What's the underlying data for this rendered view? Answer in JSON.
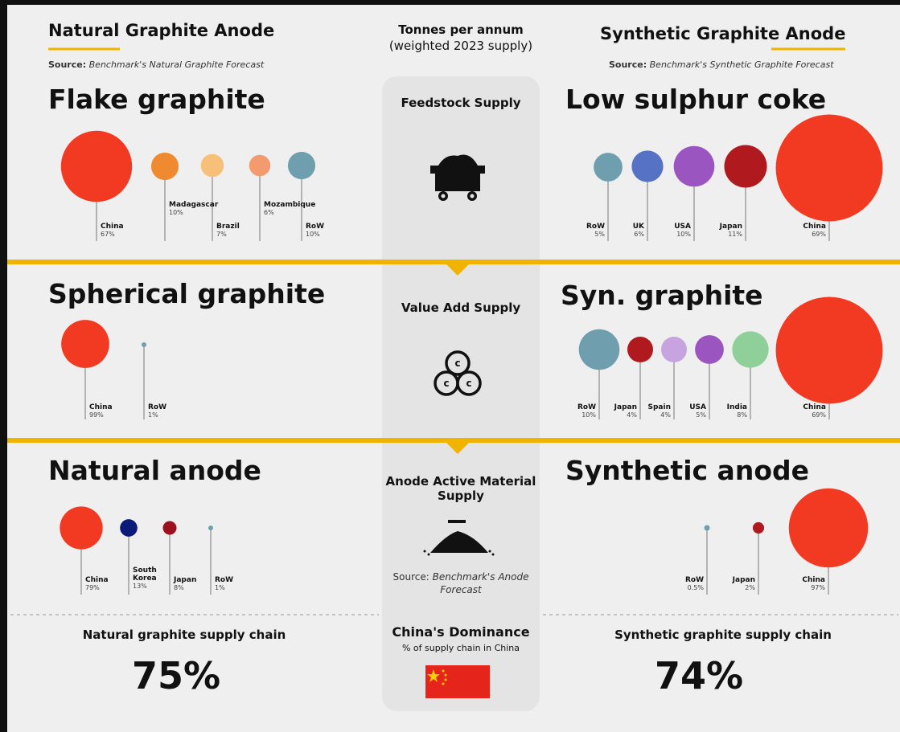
{
  "header": {
    "left": {
      "title": "Natural Graphite Anode",
      "source_label": "Source:",
      "source_text": "Benchmark's Natural Graphite Forecast"
    },
    "center": {
      "line1": "Tonnes per annum",
      "line2": "(weighted 2023 supply)"
    },
    "right": {
      "title": "Synthetic Graphite Anode",
      "source_label": "Source:",
      "source_text": "Benchmark's Synthetic Graphite Forecast"
    }
  },
  "stages": [
    {
      "label": "Feedstock Supply",
      "left": {
        "title": "Flake graphite",
        "items": [
          {
            "name": "China",
            "label": "67%",
            "value": 67,
            "color": "#f23a22"
          },
          {
            "name": "Madagascar",
            "label": "10%",
            "value": 10,
            "color": "#f08a30"
          },
          {
            "name": "Brazil",
            "label": "7%",
            "value": 7,
            "color": "#f7c07a"
          },
          {
            "name": "Mozambique",
            "label": "6%",
            "value": 6,
            "color": "#f39a6e"
          },
          {
            "name": "RoW",
            "label": "10%",
            "value": 10,
            "color": "#6f9fae"
          }
        ]
      },
      "right": {
        "title": "Low sulphur coke",
        "items": [
          {
            "name": "RoW",
            "label": "5%",
            "value": 5,
            "color": "#6f9fae"
          },
          {
            "name": "UK",
            "label": "6%",
            "value": 6,
            "color": "#5672c4"
          },
          {
            "name": "USA",
            "label": "10%",
            "value": 10,
            "color": "#9b55c0"
          },
          {
            "name": "Japan",
            "label": "11%",
            "value": 11,
            "color": "#b01a1f"
          },
          {
            "name": "China",
            "label": "69%",
            "value": 69,
            "color": "#f23a22"
          }
        ]
      }
    },
    {
      "label": "Value Add Supply",
      "left": {
        "title": "Spherical graphite",
        "items": [
          {
            "name": "China",
            "label": "99%",
            "value": 99,
            "color": "#f23a22"
          },
          {
            "name": "RoW",
            "label": "1%",
            "value": 1,
            "color": "#6f9fae"
          }
        ]
      },
      "right": {
        "title": "Syn. graphite",
        "items": [
          {
            "name": "RoW",
            "label": "10%",
            "value": 10,
            "color": "#6f9fae"
          },
          {
            "name": "Japan",
            "label": "4%",
            "value": 4,
            "color": "#b01a1f"
          },
          {
            "name": "Spain",
            "label": "4%",
            "value": 4,
            "color": "#c7a3e0"
          },
          {
            "name": "USA",
            "label": "5%",
            "value": 5,
            "color": "#9b55c0"
          },
          {
            "name": "India",
            "label": "8%",
            "value": 8,
            "color": "#8fcf9a"
          },
          {
            "name": "China",
            "label": "69%",
            "value": 69,
            "color": "#f23a22"
          }
        ]
      }
    },
    {
      "label": "Anode Active Material Supply",
      "left": {
        "title": "Natural anode",
        "items": [
          {
            "name": "China",
            "label": "79%",
            "value": 79,
            "color": "#f23a22"
          },
          {
            "name": "South Korea",
            "label": "13%",
            "value": 13,
            "color": "#0c1a7a"
          },
          {
            "name": "Japan",
            "label": "8%",
            "value": 8,
            "color": "#9c1020"
          },
          {
            "name": "RoW",
            "label": "1%",
            "value": 1,
            "color": "#6f9fae"
          }
        ]
      },
      "right": {
        "title": "Synthetic anode",
        "items": [
          {
            "name": "RoW",
            "label": "0.5%",
            "value": 0.5,
            "color": "#6f9fae"
          },
          {
            "name": "Japan",
            "label": "2%",
            "value": 2,
            "color": "#b01a1f"
          },
          {
            "name": "China",
            "label": "97%",
            "value": 97,
            "color": "#f23a22"
          }
        ]
      }
    }
  ],
  "anode_source": {
    "source_label": "Source:",
    "source_text": "Benchmark's Anode Forecast"
  },
  "footer": {
    "left": {
      "title": "Natural graphite supply chain",
      "value": "75%"
    },
    "center": {
      "title": "China's Dominance",
      "subtitle": "% of supply chain in China"
    },
    "right": {
      "title": "Synthetic graphite supply chain",
      "value": "74%"
    }
  }
}
